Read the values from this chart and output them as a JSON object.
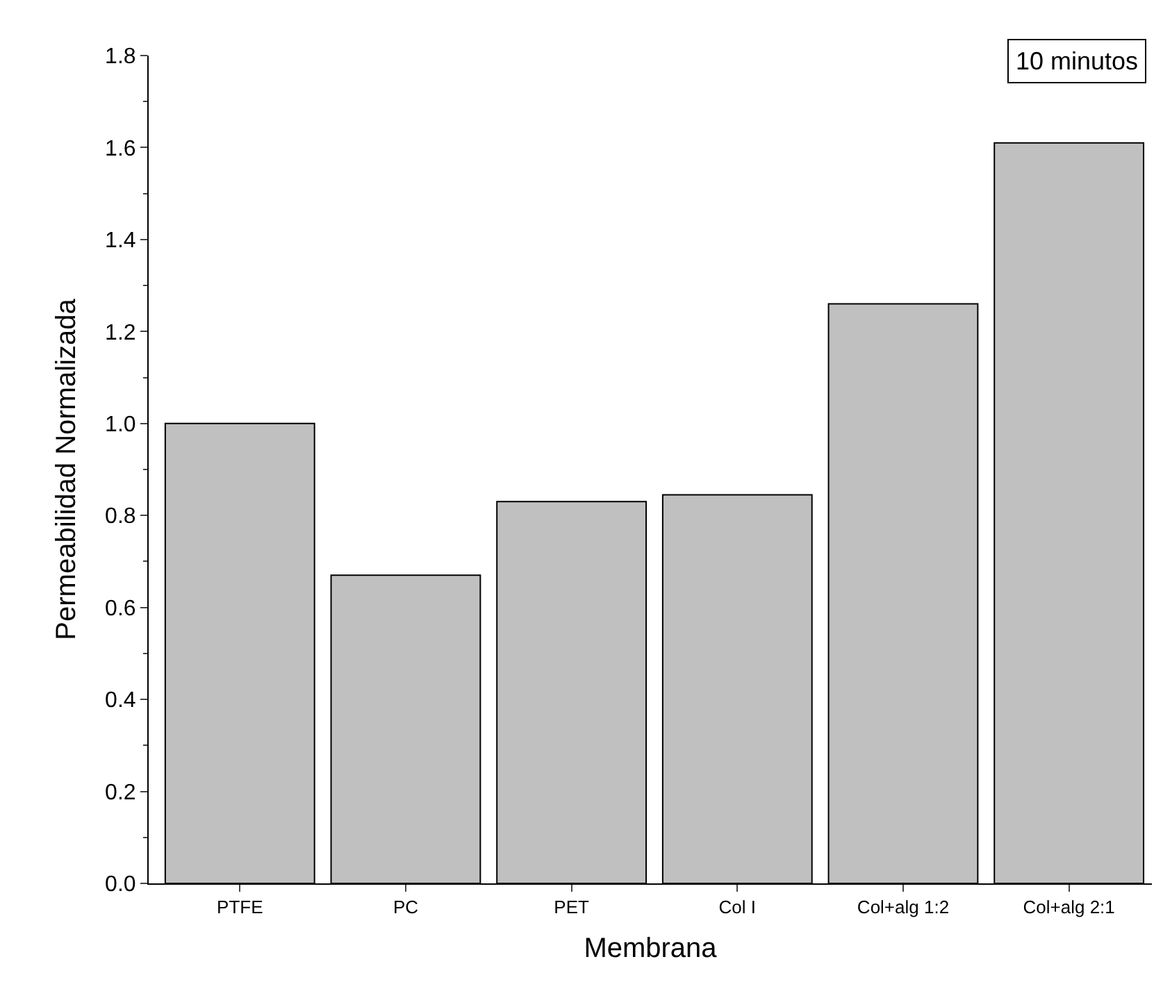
{
  "chart_data": {
    "type": "bar",
    "xlabel": "Membrana",
    "ylabel": "Permeabilidad Normalizada",
    "categories": [
      "PTFE",
      "PC",
      "PET",
      "Col I",
      "Col+alg 1:2",
      "Col+alg 2:1"
    ],
    "values": [
      1.0,
      0.67,
      0.83,
      0.845,
      1.26,
      1.61
    ],
    "color": "#c0c0c0",
    "ylim": [
      0,
      1.8
    ],
    "yticks": [
      {
        "value": 0,
        "label": "0.0"
      },
      0.2,
      0.4,
      0.6,
      0.8,
      {
        "value": 1,
        "label": "1.0"
      },
      1.2,
      1.4,
      1.6,
      1.8
    ],
    "annotations": [
      "10 minutos"
    ]
  }
}
